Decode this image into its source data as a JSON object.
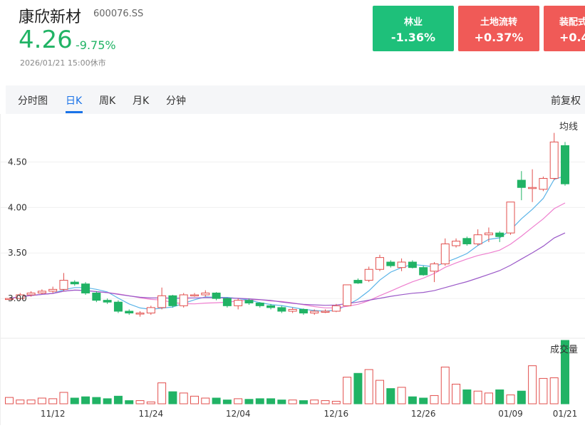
{
  "stock": {
    "name": "康欣新材",
    "code": "600076.SS",
    "price": "4.26",
    "change_pct": "-9.75%",
    "timestamp": "2026/01/21 15:00休市"
  },
  "sector_cards": [
    {
      "label": "林业",
      "value": "-1.36%",
      "color": "#1ec07a"
    },
    {
      "label": "土地流转",
      "value": "+0.37%",
      "color": "#f05a57"
    },
    {
      "label": "装配式",
      "value": "+0.4",
      "color": "#f05a57"
    }
  ],
  "tabs": [
    {
      "label": "分时图",
      "active": false
    },
    {
      "label": "日K",
      "active": true
    },
    {
      "label": "周K",
      "active": false
    },
    {
      "label": "月K",
      "active": false
    },
    {
      "label": "分钟",
      "active": false
    }
  ],
  "adjust_label": "前复权",
  "chart_data": {
    "type": "candlestick",
    "price_axis": {
      "ticks": [
        "4.50",
        "4.00",
        "3.50",
        "3.00"
      ],
      "range": [
        2.68,
        4.95
      ]
    },
    "x_ticks": [
      "11/12",
      "11/24",
      "12/04",
      "12/16",
      "12/26",
      "01/09",
      "01/21"
    ],
    "ma_label": "均线",
    "volume_label": "成交量",
    "up_color": "#e2504e",
    "down_color": "#21b365",
    "candles": [
      [
        3.0,
        3.0,
        3.0,
        3.0
      ],
      [
        3.0,
        3.04,
        3.06,
        2.98
      ],
      [
        3.04,
        3.06,
        3.08,
        3.02
      ],
      [
        3.06,
        3.08,
        3.1,
        3.05
      ],
      [
        3.08,
        3.1,
        3.13,
        3.06
      ],
      [
        3.1,
        3.2,
        3.28,
        3.08
      ],
      [
        3.18,
        3.16,
        3.2,
        3.14
      ],
      [
        3.16,
        3.06,
        3.18,
        3.04
      ],
      [
        3.06,
        2.98,
        3.08,
        2.96
      ],
      [
        2.98,
        2.96,
        3.0,
        2.94
      ],
      [
        2.96,
        2.86,
        2.98,
        2.84
      ],
      [
        2.86,
        2.84,
        2.88,
        2.82
      ],
      [
        2.84,
        2.84,
        2.86,
        2.8
      ],
      [
        2.84,
        2.9,
        2.92,
        2.82
      ],
      [
        2.9,
        3.03,
        3.12,
        2.88
      ],
      [
        3.03,
        2.92,
        3.04,
        2.9
      ],
      [
        2.92,
        3.04,
        3.06,
        2.9
      ],
      [
        3.04,
        3.04,
        3.06,
        3.02
      ],
      [
        3.04,
        3.06,
        3.09,
        3.02
      ],
      [
        3.06,
        3.0,
        3.07,
        2.98
      ],
      [
        3.0,
        2.92,
        3.01,
        2.9
      ],
      [
        2.92,
        2.98,
        3.0,
        2.88
      ],
      [
        2.98,
        2.95,
        3.0,
        2.93
      ],
      [
        2.95,
        2.92,
        2.96,
        2.9
      ],
      [
        2.92,
        2.9,
        2.94,
        2.88
      ],
      [
        2.9,
        2.86,
        2.92,
        2.84
      ],
      [
        2.86,
        2.88,
        2.9,
        2.84
      ],
      [
        2.88,
        2.84,
        2.89,
        2.82
      ],
      [
        2.84,
        2.86,
        2.88,
        2.82
      ],
      [
        2.86,
        2.86,
        2.88,
        2.84
      ],
      [
        2.86,
        2.92,
        2.94,
        2.85
      ],
      [
        2.92,
        3.15,
        3.15,
        2.92
      ],
      [
        3.2,
        3.17,
        3.22,
        3.16
      ],
      [
        3.2,
        3.32,
        3.35,
        3.18
      ],
      [
        3.32,
        3.45,
        3.48,
        3.3
      ],
      [
        3.4,
        3.36,
        3.42,
        3.34
      ],
      [
        3.34,
        3.4,
        3.44,
        3.3
      ],
      [
        3.4,
        3.34,
        3.42,
        3.33
      ],
      [
        3.34,
        3.26,
        3.36,
        3.25
      ],
      [
        3.3,
        3.38,
        3.4,
        3.18
      ],
      [
        3.38,
        3.6,
        3.66,
        3.36
      ],
      [
        3.58,
        3.63,
        3.66,
        3.56
      ],
      [
        3.66,
        3.6,
        3.68,
        3.58
      ],
      [
        3.6,
        3.7,
        3.76,
        3.58
      ],
      [
        3.7,
        3.72,
        3.78,
        3.62
      ],
      [
        3.72,
        3.68,
        3.74,
        3.62
      ],
      [
        3.72,
        4.06,
        4.06,
        3.7
      ],
      [
        4.3,
        4.22,
        4.4,
        4.08
      ],
      [
        4.22,
        4.22,
        4.42,
        4.06
      ],
      [
        4.2,
        4.32,
        4.34,
        4.18
      ],
      [
        4.32,
        4.72,
        4.82,
        4.3
      ],
      [
        4.68,
        4.26,
        4.72,
        4.24
      ]
    ],
    "volumes": [
      0.1,
      0.06,
      0.06,
      0.09,
      0.08,
      0.18,
      0.09,
      0.11,
      0.1,
      0.08,
      0.12,
      0.05,
      0.05,
      0.03,
      0.33,
      0.19,
      0.17,
      0.12,
      0.09,
      0.09,
      0.06,
      0.08,
      0.07,
      0.08,
      0.08,
      0.06,
      0.06,
      0.05,
      0.06,
      0.05,
      0.04,
      0.42,
      0.48,
      0.54,
      0.37,
      0.24,
      0.26,
      0.11,
      0.09,
      0.13,
      0.58,
      0.31,
      0.22,
      0.2,
      0.17,
      0.22,
      0.14,
      0.2,
      0.6,
      0.4,
      0.41,
      1.0
    ]
  }
}
